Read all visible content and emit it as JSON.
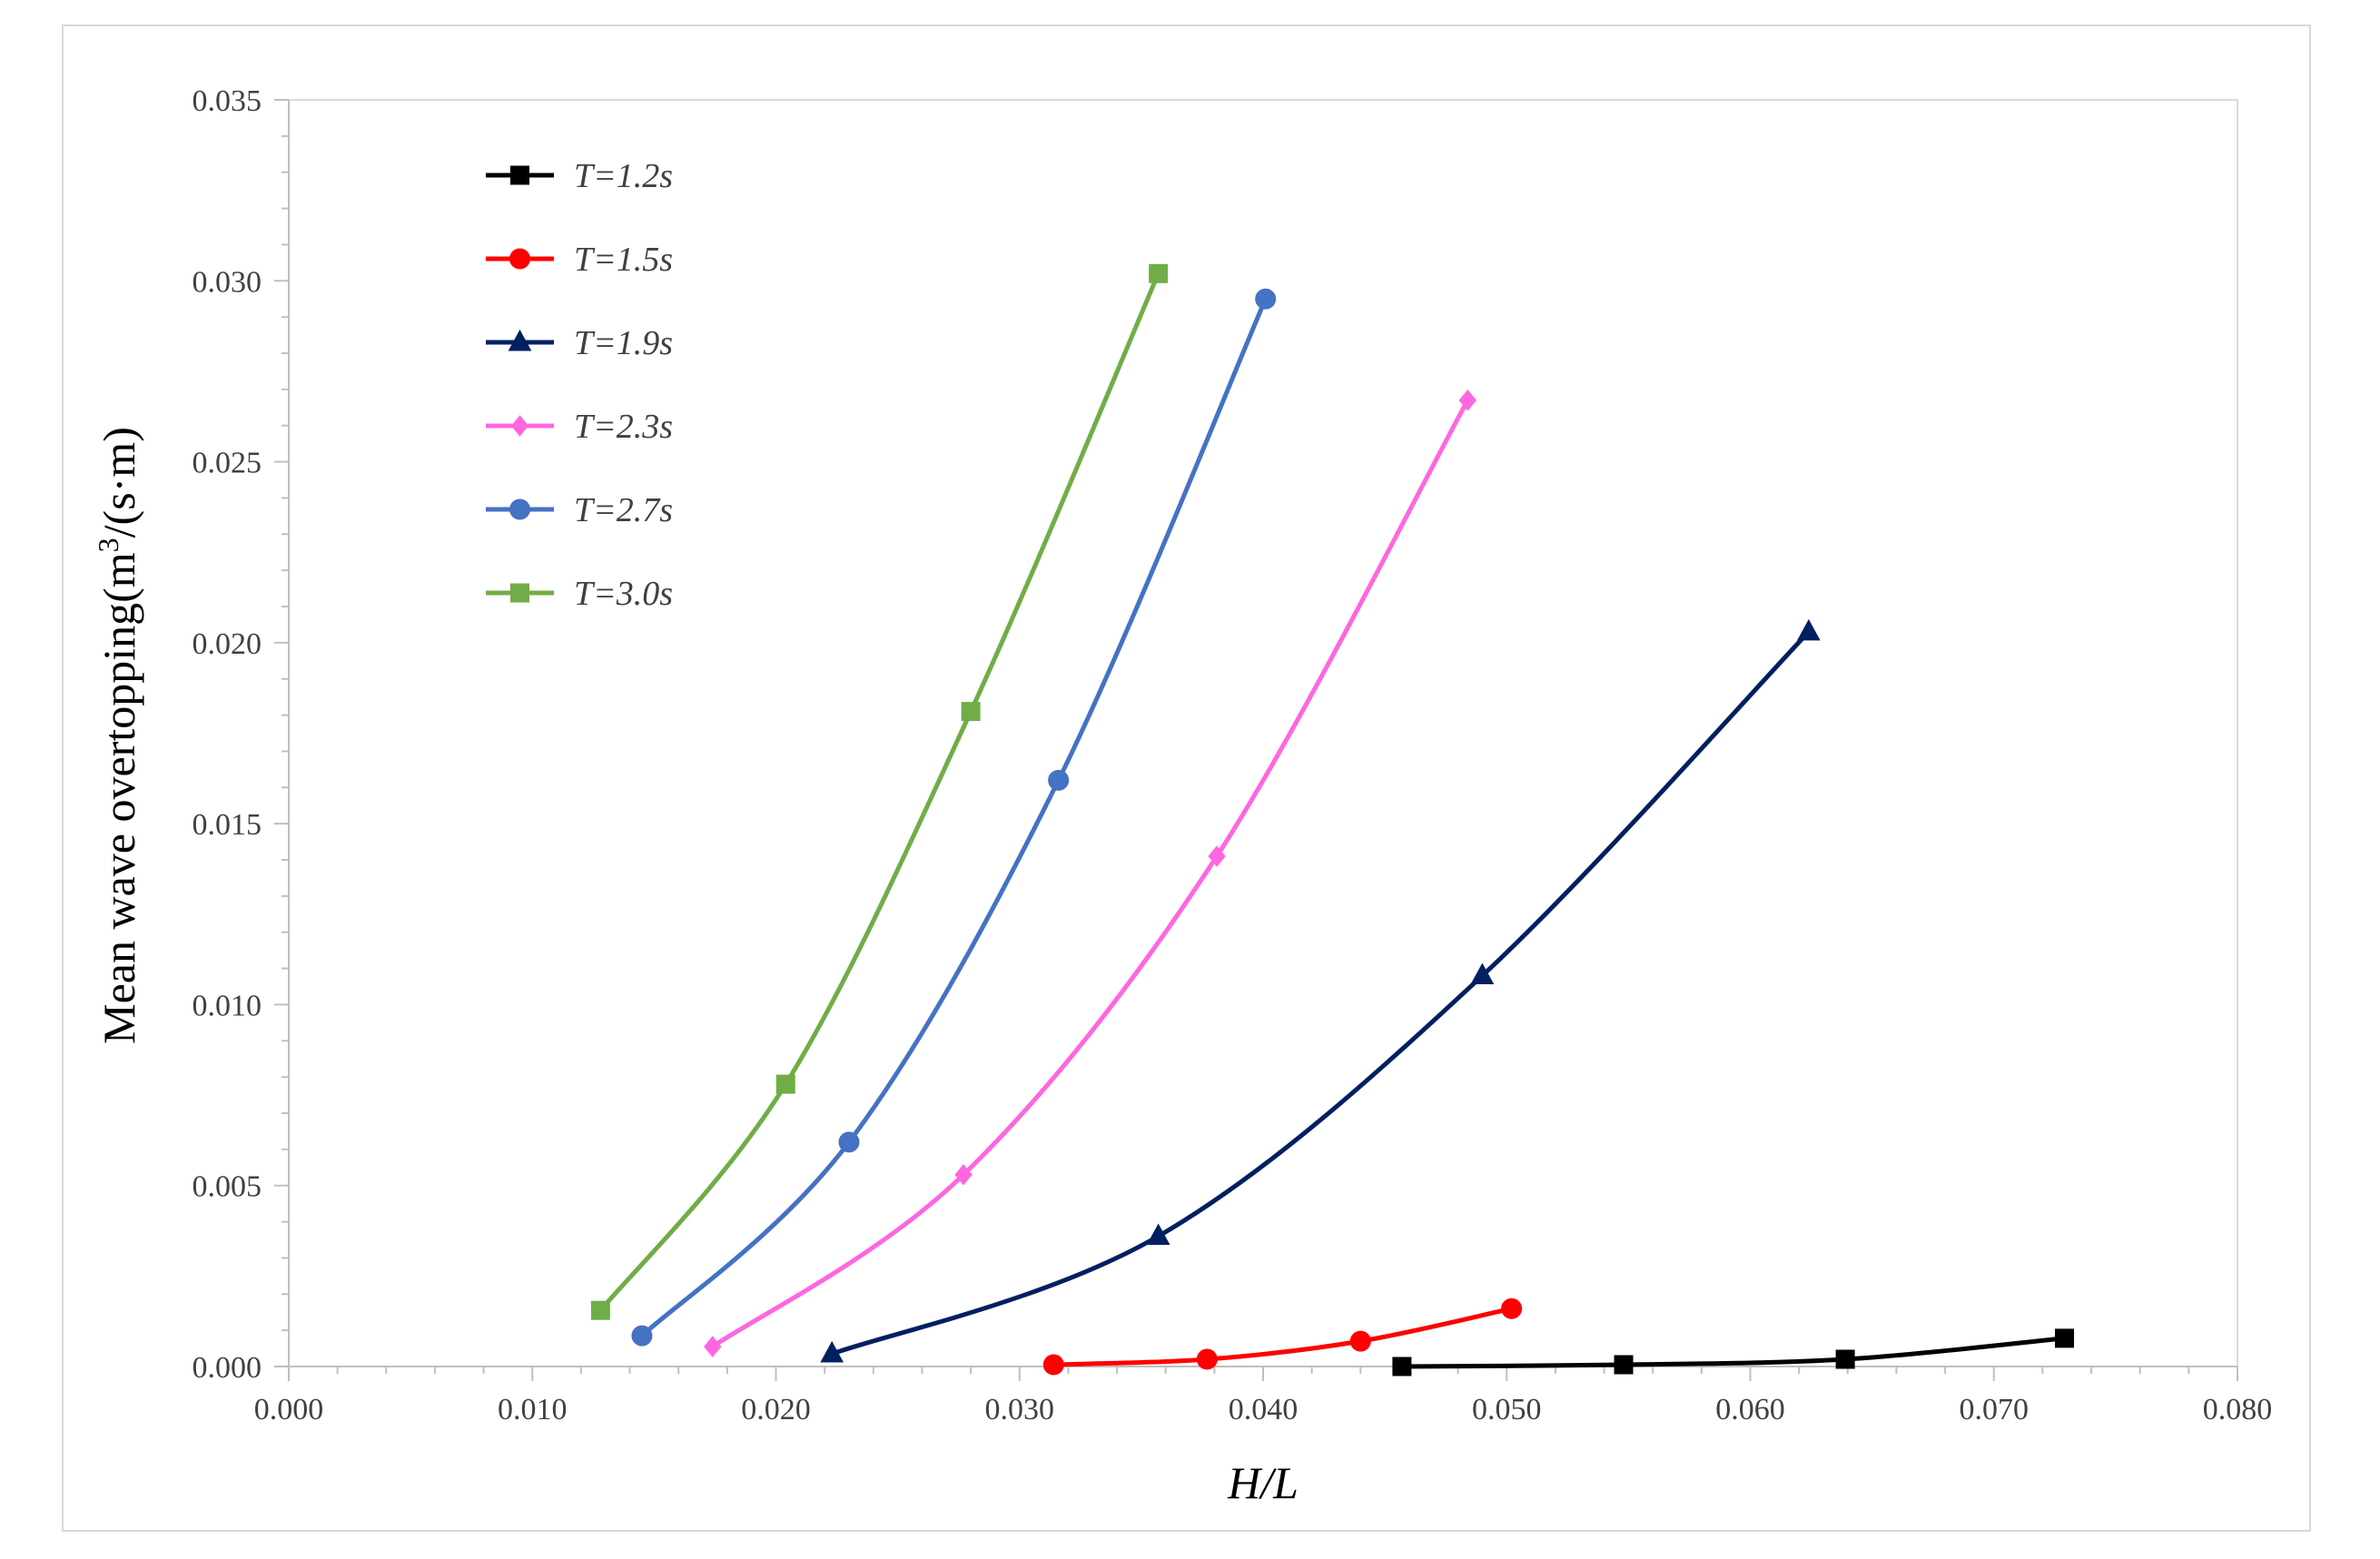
{
  "chart_data": {
    "type": "line",
    "title": "",
    "xlabel": "H/L",
    "ylabel_main": "Mean wave overtopping(m",
    "ylabel_sup": "3",
    "ylabel_tail": "/(s·m)",
    "xlim": [
      0,
      0.08
    ],
    "ylim": [
      0,
      0.035
    ],
    "xticks": [
      "0.000",
      "0.010",
      "0.020",
      "0.030",
      "0.040",
      "0.050",
      "0.060",
      "0.070",
      "0.080"
    ],
    "yticks": [
      "0.000",
      "0.005",
      "0.010",
      "0.015",
      "0.020",
      "0.025",
      "0.030",
      "0.035"
    ],
    "grid": false,
    "legend_position": "top-left",
    "series": [
      {
        "name": "T=1.2s",
        "color": "#000000",
        "marker": "square",
        "x": [
          0.0457,
          0.0548,
          0.0639,
          0.0729
        ],
        "y": [
          0.0,
          5e-05,
          0.0002,
          0.00078
        ]
      },
      {
        "name": "T=1.5s",
        "color": "#ff0000",
        "marker": "circle",
        "x": [
          0.0314,
          0.0377,
          0.044,
          0.0502
        ],
        "y": [
          5e-05,
          0.0002,
          0.0007,
          0.0016
        ]
      },
      {
        "name": "T=1.9s",
        "color": "#002060",
        "marker": "triangle",
        "x": [
          0.0223,
          0.0357,
          0.049,
          0.0624
        ],
        "y": [
          0.00035,
          0.0036,
          0.0108,
          0.0203
        ]
      },
      {
        "name": "T=2.3s",
        "color": "#ff66e0",
        "marker": "diamond",
        "x": [
          0.0174,
          0.0277,
          0.0381,
          0.0484
        ],
        "y": [
          0.00055,
          0.0053,
          0.0141,
          0.0267
        ]
      },
      {
        "name": "T=2.7s",
        "color": "#4472c4",
        "marker": "circle",
        "x": [
          0.0145,
          0.023,
          0.0316,
          0.0401
        ],
        "y": [
          0.00085,
          0.0062,
          0.0162,
          0.0295
        ]
      },
      {
        "name": "T=3.0s",
        "color": "#70ad47",
        "marker": "square",
        "x": [
          0.0128,
          0.0204,
          0.028,
          0.0357
        ],
        "y": [
          0.00155,
          0.0078,
          0.0181,
          0.0302
        ]
      }
    ]
  }
}
